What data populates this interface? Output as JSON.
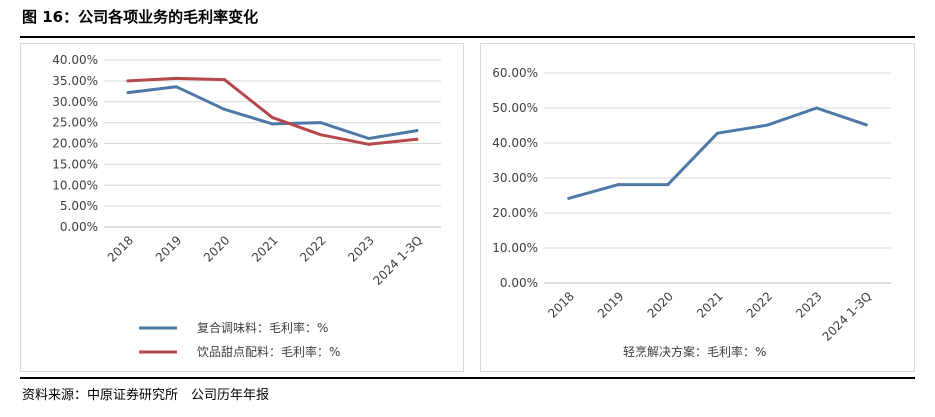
{
  "figure": {
    "title": "图 16：公司各项业务的毛利率变化",
    "source": "资料来源：中原证券研究所　公司历年年报"
  },
  "chart_data": [
    {
      "type": "line",
      "categories": [
        "2018",
        "2019",
        "2020",
        "2021",
        "2022",
        "2023",
        "2024 1-3Q"
      ],
      "ylim": [
        0,
        40
      ],
      "yticks": [
        "0.00%",
        "5.00%",
        "10.00%",
        "15.00%",
        "20.00%",
        "25.00%",
        "30.00%",
        "35.00%",
        "40.00%"
      ],
      "grid": true,
      "legend": "bottom",
      "series": [
        {
          "name": "复合调味料：毛利率：%",
          "color": "#4e79a7",
          "values": [
            32.2,
            33.6,
            28.2,
            24.7,
            25.0,
            21.2,
            23.1
          ]
        },
        {
          "name": "饮品甜点配料：毛利率：%",
          "color": "#b5484a",
          "values": [
            35.0,
            35.6,
            35.3,
            26.2,
            22.1,
            19.8,
            21.0
          ]
        }
      ]
    },
    {
      "type": "line",
      "categories": [
        "2018",
        "2019",
        "2020",
        "2021",
        "2022",
        "2023",
        "2024 1-3Q"
      ],
      "ylim": [
        0,
        60
      ],
      "yticks": [
        "0.00%",
        "10.00%",
        "20.00%",
        "30.00%",
        "40.00%",
        "50.00%",
        "60.00%"
      ],
      "grid": true,
      "legend": "bottom",
      "series": [
        {
          "name": "轻烹解决方案：毛利率：%",
          "color": "#4e79a7",
          "values": [
            24.2,
            28.1,
            28.1,
            42.8,
            45.1,
            50.0,
            45.2
          ]
        }
      ]
    }
  ]
}
